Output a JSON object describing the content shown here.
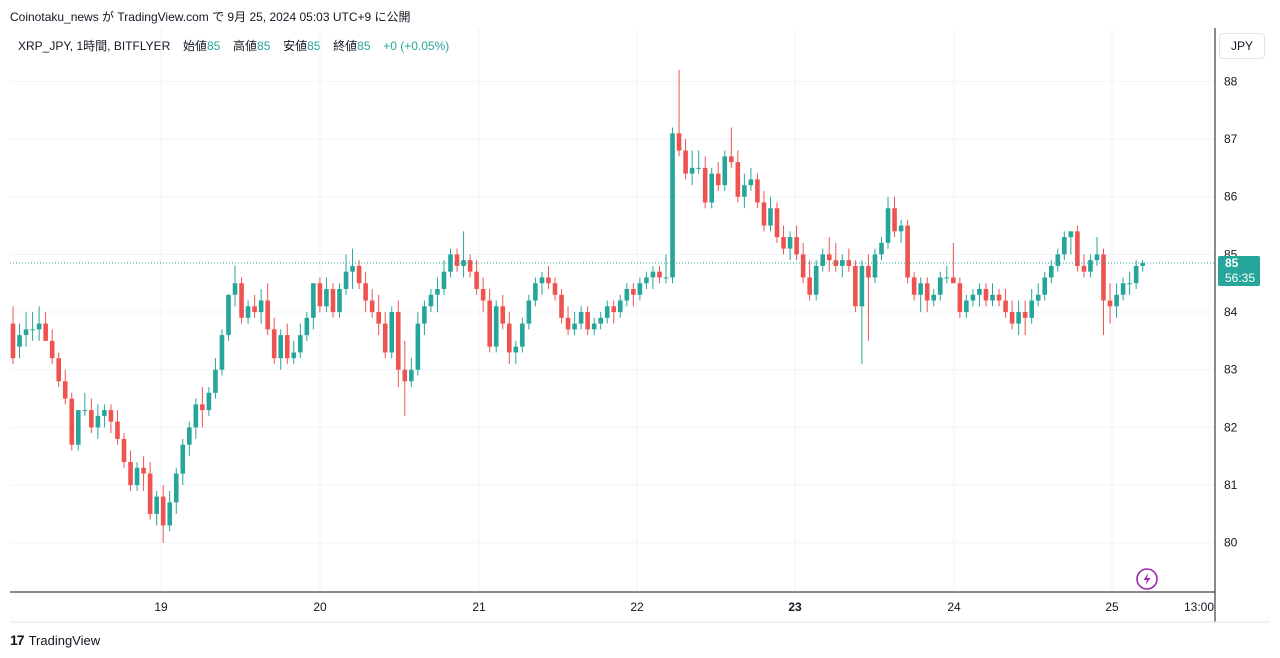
{
  "header": {
    "text": "Coinotaku_news が TradingView.com で 9月 25, 2024 05:03 UTC+9 に公開"
  },
  "legend": {
    "symbol": "XRP_JPY, 1時間, BITFLYER",
    "open_label": "始値",
    "open_value": "85",
    "high_label": "高値",
    "high_value": "85",
    "low_label": "安値",
    "low_value": "85",
    "close_label": "終値",
    "close_value": "85",
    "change": "+0 (+0.05%)"
  },
  "currency_button": "JPY",
  "price_tag": {
    "price": "85",
    "countdown": "56:35"
  },
  "footer": {
    "logo": "17",
    "brand": "TradingView"
  },
  "colors": {
    "up": "#26a69a",
    "down": "#ef5350",
    "grid": "#f0f3fa",
    "axis": "#131722",
    "flash": "#9c27b0"
  },
  "chart_data": {
    "type": "candlestick",
    "y_ticks": [
      "88",
      "87",
      "86",
      "85",
      "84",
      "83",
      "82",
      "81",
      "80"
    ],
    "x_ticks": [
      "19",
      "20",
      "21",
      "22",
      "23",
      "24",
      "25",
      "13:00"
    ],
    "ylim": [
      79.25,
      88.7
    ],
    "interval": "1時間",
    "last_price": 84.85,
    "candles_ohlc": [
      [
        83.8,
        84.1,
        83.1,
        83.2
      ],
      [
        83.4,
        83.8,
        83.2,
        83.6
      ],
      [
        83.6,
        84.0,
        83.4,
        83.7
      ],
      [
        83.7,
        84.0,
        83.5,
        83.7
      ],
      [
        83.7,
        84.1,
        83.5,
        83.8
      ],
      [
        83.8,
        84.0,
        83.5,
        83.5
      ],
      [
        83.5,
        83.7,
        83.1,
        83.2
      ],
      [
        83.2,
        83.3,
        82.7,
        82.8
      ],
      [
        82.8,
        83.0,
        82.4,
        82.5
      ],
      [
        82.5,
        82.6,
        81.6,
        81.7
      ],
      [
        81.7,
        82.3,
        81.6,
        82.3
      ],
      [
        82.3,
        82.6,
        82.2,
        82.3
      ],
      [
        82.3,
        82.5,
        81.9,
        82.0
      ],
      [
        82.0,
        82.4,
        81.8,
        82.2
      ],
      [
        82.2,
        82.4,
        82.0,
        82.3
      ],
      [
        82.3,
        82.4,
        81.9,
        82.1
      ],
      [
        82.1,
        82.3,
        81.7,
        81.8
      ],
      [
        81.8,
        81.9,
        81.3,
        81.4
      ],
      [
        81.4,
        81.6,
        80.9,
        81.0
      ],
      [
        81.0,
        81.4,
        80.9,
        81.3
      ],
      [
        81.3,
        81.5,
        80.9,
        81.2
      ],
      [
        81.2,
        81.4,
        80.4,
        80.5
      ],
      [
        80.5,
        80.9,
        80.3,
        80.8
      ],
      [
        80.8,
        81.0,
        80.0,
        80.3
      ],
      [
        80.3,
        80.9,
        80.2,
        80.7
      ],
      [
        80.7,
        81.3,
        80.5,
        81.2
      ],
      [
        81.2,
        81.8,
        81.0,
        81.7
      ],
      [
        81.7,
        82.1,
        81.5,
        82.0
      ],
      [
        82.0,
        82.5,
        81.8,
        82.4
      ],
      [
        82.4,
        82.7,
        82.0,
        82.3
      ],
      [
        82.3,
        82.7,
        82.2,
        82.6
      ],
      [
        82.6,
        83.2,
        82.5,
        83.0
      ],
      [
        83.0,
        83.7,
        82.9,
        83.6
      ],
      [
        83.6,
        84.3,
        83.5,
        84.3
      ],
      [
        84.3,
        84.8,
        84.1,
        84.5
      ],
      [
        84.5,
        84.6,
        83.8,
        83.9
      ],
      [
        83.9,
        84.2,
        83.8,
        84.1
      ],
      [
        84.1,
        84.3,
        83.9,
        84.0
      ],
      [
        84.0,
        84.4,
        83.8,
        84.2
      ],
      [
        84.2,
        84.5,
        83.6,
        83.7
      ],
      [
        83.7,
        83.9,
        83.1,
        83.2
      ],
      [
        83.2,
        83.7,
        83.0,
        83.6
      ],
      [
        83.6,
        83.8,
        83.1,
        83.2
      ],
      [
        83.2,
        83.5,
        83.1,
        83.3
      ],
      [
        83.3,
        83.8,
        83.2,
        83.6
      ],
      [
        83.6,
        84.0,
        83.5,
        83.9
      ],
      [
        83.9,
        84.5,
        83.7,
        84.5
      ],
      [
        84.5,
        84.6,
        84.0,
        84.1
      ],
      [
        84.1,
        84.6,
        84.0,
        84.4
      ],
      [
        84.4,
        84.5,
        83.9,
        84.0
      ],
      [
        84.0,
        84.5,
        83.9,
        84.4
      ],
      [
        84.4,
        85.0,
        84.3,
        84.7
      ],
      [
        84.7,
        85.1,
        84.4,
        84.8
      ],
      [
        84.8,
        84.9,
        84.4,
        84.5
      ],
      [
        84.5,
        84.7,
        84.0,
        84.2
      ],
      [
        84.2,
        84.4,
        83.9,
        84.0
      ],
      [
        84.0,
        84.3,
        83.6,
        83.8
      ],
      [
        83.8,
        84.0,
        83.2,
        83.3
      ],
      [
        83.3,
        84.1,
        83.2,
        84.0
      ],
      [
        84.0,
        84.2,
        82.7,
        83.0
      ],
      [
        83.0,
        83.5,
        82.2,
        82.8
      ],
      [
        82.8,
        83.2,
        82.7,
        83.0
      ],
      [
        83.0,
        84.0,
        82.9,
        83.8
      ],
      [
        83.8,
        84.2,
        83.6,
        84.1
      ],
      [
        84.1,
        84.4,
        84.0,
        84.3
      ],
      [
        84.3,
        84.6,
        84.0,
        84.4
      ],
      [
        84.4,
        84.9,
        84.3,
        84.7
      ],
      [
        84.7,
        85.1,
        84.6,
        85.0
      ],
      [
        85.0,
        85.1,
        84.7,
        84.8
      ],
      [
        84.8,
        85.4,
        84.6,
        84.9
      ],
      [
        84.9,
        85.0,
        84.6,
        84.7
      ],
      [
        84.7,
        84.9,
        84.3,
        84.4
      ],
      [
        84.4,
        84.6,
        84.0,
        84.2
      ],
      [
        84.2,
        84.4,
        83.3,
        83.4
      ],
      [
        83.4,
        84.2,
        83.3,
        84.1
      ],
      [
        84.1,
        84.3,
        83.7,
        83.8
      ],
      [
        83.8,
        84.0,
        83.1,
        83.3
      ],
      [
        83.3,
        83.5,
        83.1,
        83.4
      ],
      [
        83.4,
        83.9,
        83.3,
        83.8
      ],
      [
        83.8,
        84.3,
        83.7,
        84.2
      ],
      [
        84.2,
        84.6,
        84.1,
        84.5
      ],
      [
        84.5,
        84.7,
        84.3,
        84.6
      ],
      [
        84.6,
        84.8,
        84.4,
        84.5
      ],
      [
        84.5,
        84.6,
        84.2,
        84.3
      ],
      [
        84.3,
        84.4,
        83.8,
        83.9
      ],
      [
        83.9,
        84.1,
        83.6,
        83.7
      ],
      [
        83.7,
        84.0,
        83.6,
        83.8
      ],
      [
        83.8,
        84.1,
        83.7,
        84.0
      ],
      [
        84.0,
        84.1,
        83.6,
        83.7
      ],
      [
        83.7,
        83.9,
        83.6,
        83.8
      ],
      [
        83.8,
        84.0,
        83.7,
        83.9
      ],
      [
        83.9,
        84.2,
        83.8,
        84.1
      ],
      [
        84.1,
        84.2,
        83.8,
        84.0
      ],
      [
        84.0,
        84.3,
        83.9,
        84.2
      ],
      [
        84.2,
        84.5,
        84.1,
        84.4
      ],
      [
        84.4,
        84.5,
        84.1,
        84.3
      ],
      [
        84.3,
        84.6,
        84.2,
        84.5
      ],
      [
        84.5,
        84.7,
        84.4,
        84.6
      ],
      [
        84.6,
        84.8,
        84.4,
        84.7
      ],
      [
        84.7,
        84.8,
        84.5,
        84.6
      ],
      [
        84.6,
        85.0,
        84.5,
        84.6
      ],
      [
        84.6,
        87.2,
        84.5,
        87.1
      ],
      [
        87.1,
        88.2,
        86.7,
        86.8
      ],
      [
        86.8,
        87.0,
        86.3,
        86.4
      ],
      [
        86.4,
        86.8,
        86.2,
        86.5
      ],
      [
        86.5,
        86.8,
        86.4,
        86.5
      ],
      [
        86.5,
        86.7,
        85.8,
        85.9
      ],
      [
        85.9,
        86.5,
        85.8,
        86.4
      ],
      [
        86.4,
        86.6,
        86.1,
        86.2
      ],
      [
        86.2,
        86.8,
        86.1,
        86.7
      ],
      [
        86.7,
        87.2,
        86.5,
        86.6
      ],
      [
        86.6,
        86.8,
        85.9,
        86.0
      ],
      [
        86.0,
        86.4,
        85.8,
        86.2
      ],
      [
        86.2,
        86.5,
        86.1,
        86.3
      ],
      [
        86.3,
        86.4,
        85.8,
        85.9
      ],
      [
        85.9,
        86.1,
        85.4,
        85.5
      ],
      [
        85.5,
        86.0,
        85.4,
        85.8
      ],
      [
        85.8,
        85.9,
        85.2,
        85.3
      ],
      [
        85.3,
        85.5,
        85.0,
        85.1
      ],
      [
        85.1,
        85.4,
        84.9,
        85.3
      ],
      [
        85.3,
        85.5,
        84.9,
        85.0
      ],
      [
        85.0,
        85.2,
        84.5,
        84.6
      ],
      [
        84.6,
        84.9,
        84.2,
        84.3
      ],
      [
        84.3,
        84.9,
        84.2,
        84.8
      ],
      [
        84.8,
        85.1,
        84.7,
        85.0
      ],
      [
        85.0,
        85.3,
        84.7,
        84.9
      ],
      [
        84.9,
        85.2,
        84.7,
        84.8
      ],
      [
        84.8,
        85.0,
        84.6,
        84.9
      ],
      [
        84.9,
        85.1,
        84.7,
        84.8
      ],
      [
        84.8,
        84.9,
        84.0,
        84.1
      ],
      [
        84.1,
        84.9,
        83.1,
        84.8
      ],
      [
        84.8,
        85.0,
        83.5,
        84.6
      ],
      [
        84.6,
        85.1,
        84.5,
        85.0
      ],
      [
        85.0,
        85.3,
        84.9,
        85.2
      ],
      [
        85.2,
        86.0,
        85.1,
        85.8
      ],
      [
        85.8,
        86.0,
        85.3,
        85.4
      ],
      [
        85.4,
        85.6,
        85.2,
        85.5
      ],
      [
        85.5,
        85.6,
        84.5,
        84.6
      ],
      [
        84.6,
        84.7,
        84.2,
        84.3
      ],
      [
        84.3,
        84.6,
        84.0,
        84.5
      ],
      [
        84.5,
        84.6,
        84.0,
        84.2
      ],
      [
        84.2,
        84.4,
        84.1,
        84.3
      ],
      [
        84.3,
        84.7,
        84.2,
        84.6
      ],
      [
        84.6,
        84.8,
        84.5,
        84.6
      ],
      [
        84.6,
        85.2,
        84.5,
        84.5
      ],
      [
        84.5,
        84.6,
        83.9,
        84.0
      ],
      [
        84.0,
        84.3,
        83.9,
        84.2
      ],
      [
        84.2,
        84.4,
        84.1,
        84.3
      ],
      [
        84.3,
        84.5,
        84.1,
        84.4
      ],
      [
        84.4,
        84.5,
        84.1,
        84.2
      ],
      [
        84.2,
        84.5,
        84.1,
        84.3
      ],
      [
        84.3,
        84.4,
        84.1,
        84.2
      ],
      [
        84.2,
        84.4,
        83.9,
        84.0
      ],
      [
        84.0,
        84.2,
        83.7,
        83.8
      ],
      [
        83.8,
        84.2,
        83.6,
        84.0
      ],
      [
        84.0,
        84.2,
        83.6,
        83.9
      ],
      [
        83.9,
        84.4,
        83.8,
        84.2
      ],
      [
        84.2,
        84.5,
        84.1,
        84.3
      ],
      [
        84.3,
        84.7,
        84.2,
        84.6
      ],
      [
        84.6,
        84.9,
        84.5,
        84.8
      ],
      [
        84.8,
        85.1,
        84.7,
        85.0
      ],
      [
        85.0,
        85.4,
        84.9,
        85.3
      ],
      [
        85.3,
        85.4,
        85.0,
        85.4
      ],
      [
        85.4,
        85.5,
        84.7,
        84.8
      ],
      [
        84.8,
        85.0,
        84.6,
        84.7
      ],
      [
        84.7,
        85.0,
        84.6,
        84.9
      ],
      [
        84.9,
        85.3,
        84.8,
        85.0
      ],
      [
        85.0,
        85.1,
        83.6,
        84.2
      ],
      [
        84.2,
        84.5,
        83.8,
        84.1
      ],
      [
        84.1,
        84.5,
        83.9,
        84.3
      ],
      [
        84.3,
        84.6,
        84.2,
        84.5
      ],
      [
        84.5,
        84.7,
        84.3,
        84.5
      ],
      [
        84.5,
        84.9,
        84.4,
        84.8
      ],
      [
        84.8,
        84.9,
        84.7,
        84.85
      ]
    ]
  }
}
